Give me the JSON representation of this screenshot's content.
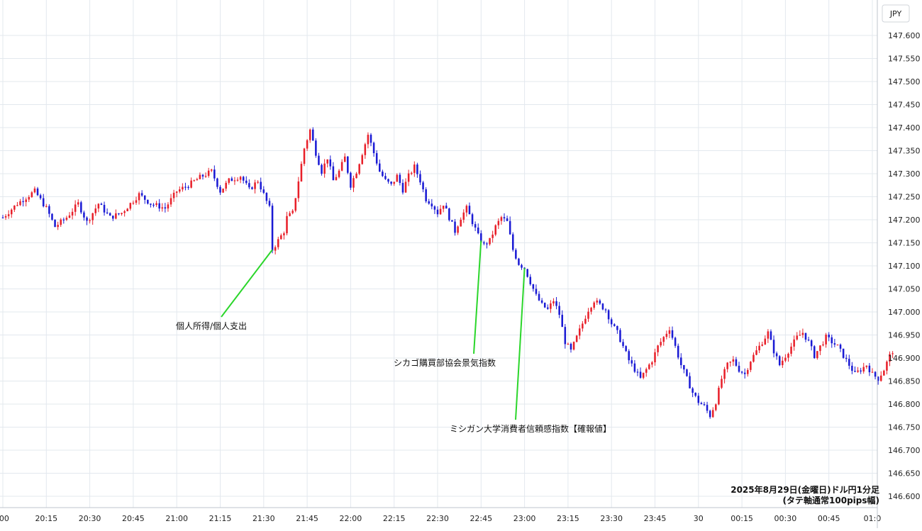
{
  "chart_data": {
    "type": "candlestick",
    "currency_label": "JPY",
    "y_ticks": [
      "147.600",
      "147.550",
      "147.500",
      "147.450",
      "147.400",
      "147.350",
      "147.300",
      "147.250",
      "147.200",
      "147.150",
      "147.100",
      "147.050",
      "147.000",
      "146.950",
      "146.900",
      "146.850",
      "146.800",
      "146.750",
      "146.700",
      "146.650",
      "146.600"
    ],
    "ylim": [
      146.58,
      147.655
    ],
    "x_ticks": [
      ":00",
      "20:15",
      "20:30",
      "20:45",
      "21:00",
      "21:15",
      "21:30",
      "21:45",
      "22:00",
      "22:15",
      "22:30",
      "22:45",
      "23:00",
      "23:15",
      "23:30",
      "23:45",
      "30",
      "00:15",
      "00:30",
      "00:45",
      "01:0"
    ],
    "grid": true,
    "annotations": [
      {
        "label": "個人所得/個人支出",
        "time_min": 93
      },
      {
        "label": "シカゴ購買部協会景気指数",
        "time_min": 165
      },
      {
        "label": "ミシガン大学消費者信頼感指数【確報値】",
        "time_min": 180
      }
    ],
    "info_lines": [
      "2025年8月29日(金曜日)ドル円1分足",
      "(タテ軸通常100pips幅)"
    ],
    "colors": {
      "up": "#e8202a",
      "down": "#1a1ad4",
      "annotation_line": "#2bd62b",
      "grid": "#e3e8ee"
    },
    "close_path": [
      [
        0,
        147.205
      ],
      [
        5,
        147.235
      ],
      [
        11,
        147.262
      ],
      [
        15,
        147.225
      ],
      [
        18,
        147.185
      ],
      [
        22,
        147.205
      ],
      [
        26,
        147.235
      ],
      [
        29,
        147.195
      ],
      [
        33,
        147.235
      ],
      [
        37,
        147.205
      ],
      [
        41,
        147.215
      ],
      [
        47,
        147.255
      ],
      [
        51,
        147.235
      ],
      [
        56,
        147.225
      ],
      [
        60,
        147.262
      ],
      [
        64,
        147.275
      ],
      [
        68,
        147.292
      ],
      [
        72,
        147.305
      ],
      [
        75,
        147.262
      ],
      [
        78,
        147.285
      ],
      [
        82,
        147.295
      ],
      [
        85,
        147.265
      ],
      [
        88,
        147.285
      ],
      [
        90,
        147.255
      ],
      [
        92,
        147.225
      ],
      [
        93,
        147.135
      ],
      [
        95,
        147.155
      ],
      [
        97,
        147.175
      ],
      [
        98,
        147.205
      ],
      [
        100,
        147.215
      ],
      [
        102,
        147.285
      ],
      [
        104,
        147.355
      ],
      [
        106,
        147.395
      ],
      [
        108,
        147.345
      ],
      [
        110,
        147.305
      ],
      [
        112,
        147.335
      ],
      [
        114,
        147.285
      ],
      [
        116,
        147.305
      ],
      [
        118,
        147.335
      ],
      [
        120,
        147.275
      ],
      [
        122,
        147.305
      ],
      [
        124,
        147.345
      ],
      [
        126,
        147.385
      ],
      [
        128,
        147.345
      ],
      [
        130,
        147.305
      ],
      [
        132,
        147.285
      ],
      [
        134,
        147.275
      ],
      [
        136,
        147.295
      ],
      [
        138,
        147.265
      ],
      [
        140,
        147.295
      ],
      [
        142,
        147.315
      ],
      [
        144,
        147.285
      ],
      [
        146,
        147.245
      ],
      [
        148,
        147.235
      ],
      [
        150,
        147.215
      ],
      [
        152,
        147.235
      ],
      [
        154,
        147.205
      ],
      [
        156,
        147.175
      ],
      [
        158,
        147.205
      ],
      [
        160,
        147.225
      ],
      [
        162,
        147.195
      ],
      [
        164,
        147.165
      ],
      [
        166,
        147.145
      ],
      [
        168,
        147.155
      ],
      [
        170,
        147.185
      ],
      [
        172,
        147.205
      ],
      [
        174,
        147.195
      ],
      [
        176,
        147.135
      ],
      [
        178,
        147.105
      ],
      [
        180,
        147.095
      ],
      [
        182,
        147.065
      ],
      [
        184,
        147.035
      ],
      [
        186,
        147.015
      ],
      [
        188,
        147.005
      ],
      [
        190,
        147.025
      ],
      [
        192,
        146.995
      ],
      [
        194,
        146.935
      ],
      [
        196,
        146.915
      ],
      [
        198,
        146.945
      ],
      [
        200,
        146.975
      ],
      [
        202,
        147.005
      ],
      [
        204,
        147.025
      ],
      [
        206,
        147.015
      ],
      [
        208,
        147.005
      ],
      [
        210,
        146.975
      ],
      [
        212,
        146.955
      ],
      [
        214,
        146.925
      ],
      [
        216,
        146.895
      ],
      [
        218,
        146.875
      ],
      [
        220,
        146.855
      ],
      [
        222,
        146.875
      ],
      [
        224,
        146.895
      ],
      [
        226,
        146.925
      ],
      [
        228,
        146.945
      ],
      [
        230,
        146.965
      ],
      [
        232,
        146.925
      ],
      [
        234,
        146.885
      ],
      [
        236,
        146.855
      ],
      [
        238,
        146.825
      ],
      [
        240,
        146.805
      ],
      [
        242,
        146.795
      ],
      [
        244,
        146.775
      ],
      [
        246,
        146.805
      ],
      [
        248,
        146.855
      ],
      [
        250,
        146.885
      ],
      [
        252,
        146.895
      ],
      [
        254,
        146.875
      ],
      [
        256,
        146.865
      ],
      [
        258,
        146.895
      ],
      [
        260,
        146.915
      ],
      [
        262,
        146.935
      ],
      [
        264,
        146.955
      ],
      [
        266,
        146.915
      ],
      [
        268,
        146.885
      ],
      [
        270,
        146.905
      ],
      [
        272,
        146.925
      ],
      [
        274,
        146.945
      ],
      [
        276,
        146.955
      ],
      [
        278,
        146.935
      ],
      [
        280,
        146.905
      ],
      [
        282,
        146.925
      ],
      [
        284,
        146.945
      ],
      [
        286,
        146.935
      ],
      [
        288,
        146.925
      ],
      [
        290,
        146.905
      ],
      [
        292,
        146.885
      ],
      [
        294,
        146.865
      ],
      [
        296,
        146.875
      ],
      [
        298,
        146.885
      ],
      [
        300,
        146.865
      ],
      [
        302,
        146.855
      ],
      [
        304,
        146.875
      ],
      [
        306,
        146.905
      ],
      [
        307,
        146.915
      ]
    ]
  }
}
